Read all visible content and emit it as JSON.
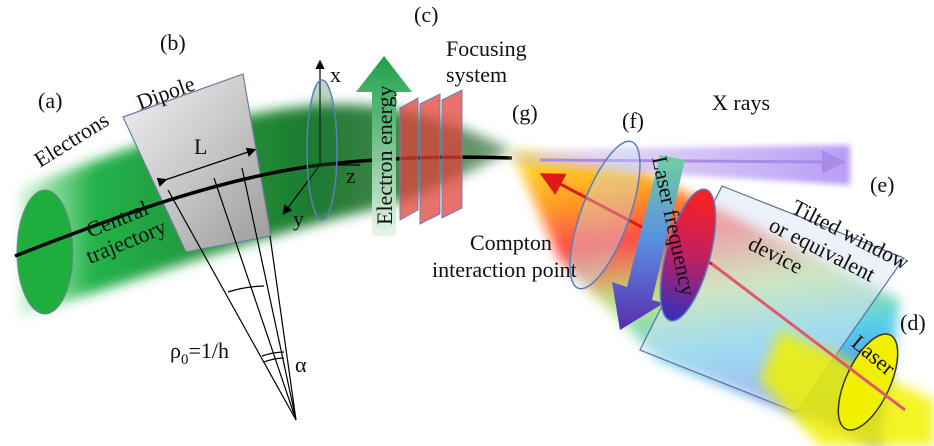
{
  "labels": {
    "a": "(a)",
    "electrons": "Electrons",
    "b": "(b)",
    "dipole": "Dipole",
    "length": "L",
    "central_trajectory": [
      "Central",
      "trajectory"
    ],
    "axis_x": "x",
    "axis_y": "y",
    "axis_z": "z",
    "c": "(c)",
    "focusing_system": [
      "Focusing",
      "system"
    ],
    "electron_energy": "Electron energy",
    "g": "(g)",
    "compton": [
      "Compton",
      "interaction point"
    ],
    "f": "(f)",
    "laser_frequency": "Laser frequency",
    "x_rays": "X rays",
    "e": "(e)",
    "tilted_window": [
      "Tilted window",
      "or equivalent",
      "device"
    ],
    "d": "(d)",
    "laser": "Laser",
    "rho": {
      "symbol": "ρ",
      "subscript": "0",
      "rest": "=1/h"
    },
    "alpha": "α"
  }
}
